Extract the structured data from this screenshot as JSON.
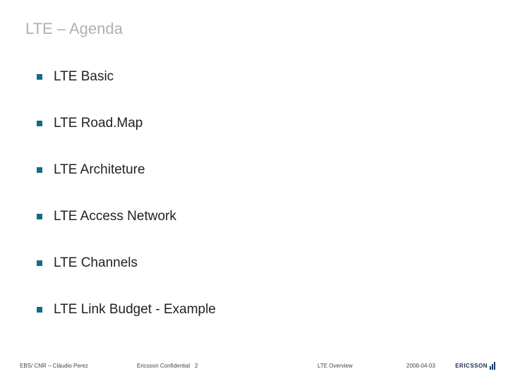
{
  "title": "LTE – Agenda",
  "bullet_color": "#0f6d86",
  "title_color": "#b0b0b0",
  "text_color": "#222222",
  "background_color": "#ffffff",
  "title_fontsize": 22,
  "item_fontsize": 19,
  "footer_fontsize": 8,
  "items": [
    "LTE Basic",
    "LTE Road.Map",
    "LTE Architeture",
    "LTE Access Network",
    "LTE Channels",
    "LTE Link Budget - Example"
  ],
  "footer": {
    "author": "EBS/ CNR – Cláudio Perez",
    "confidential": "Ericsson Confidential",
    "page": "2",
    "topic": "LTE  Overview",
    "date": "2008-04-03",
    "logo_text": "ERICSSON"
  }
}
